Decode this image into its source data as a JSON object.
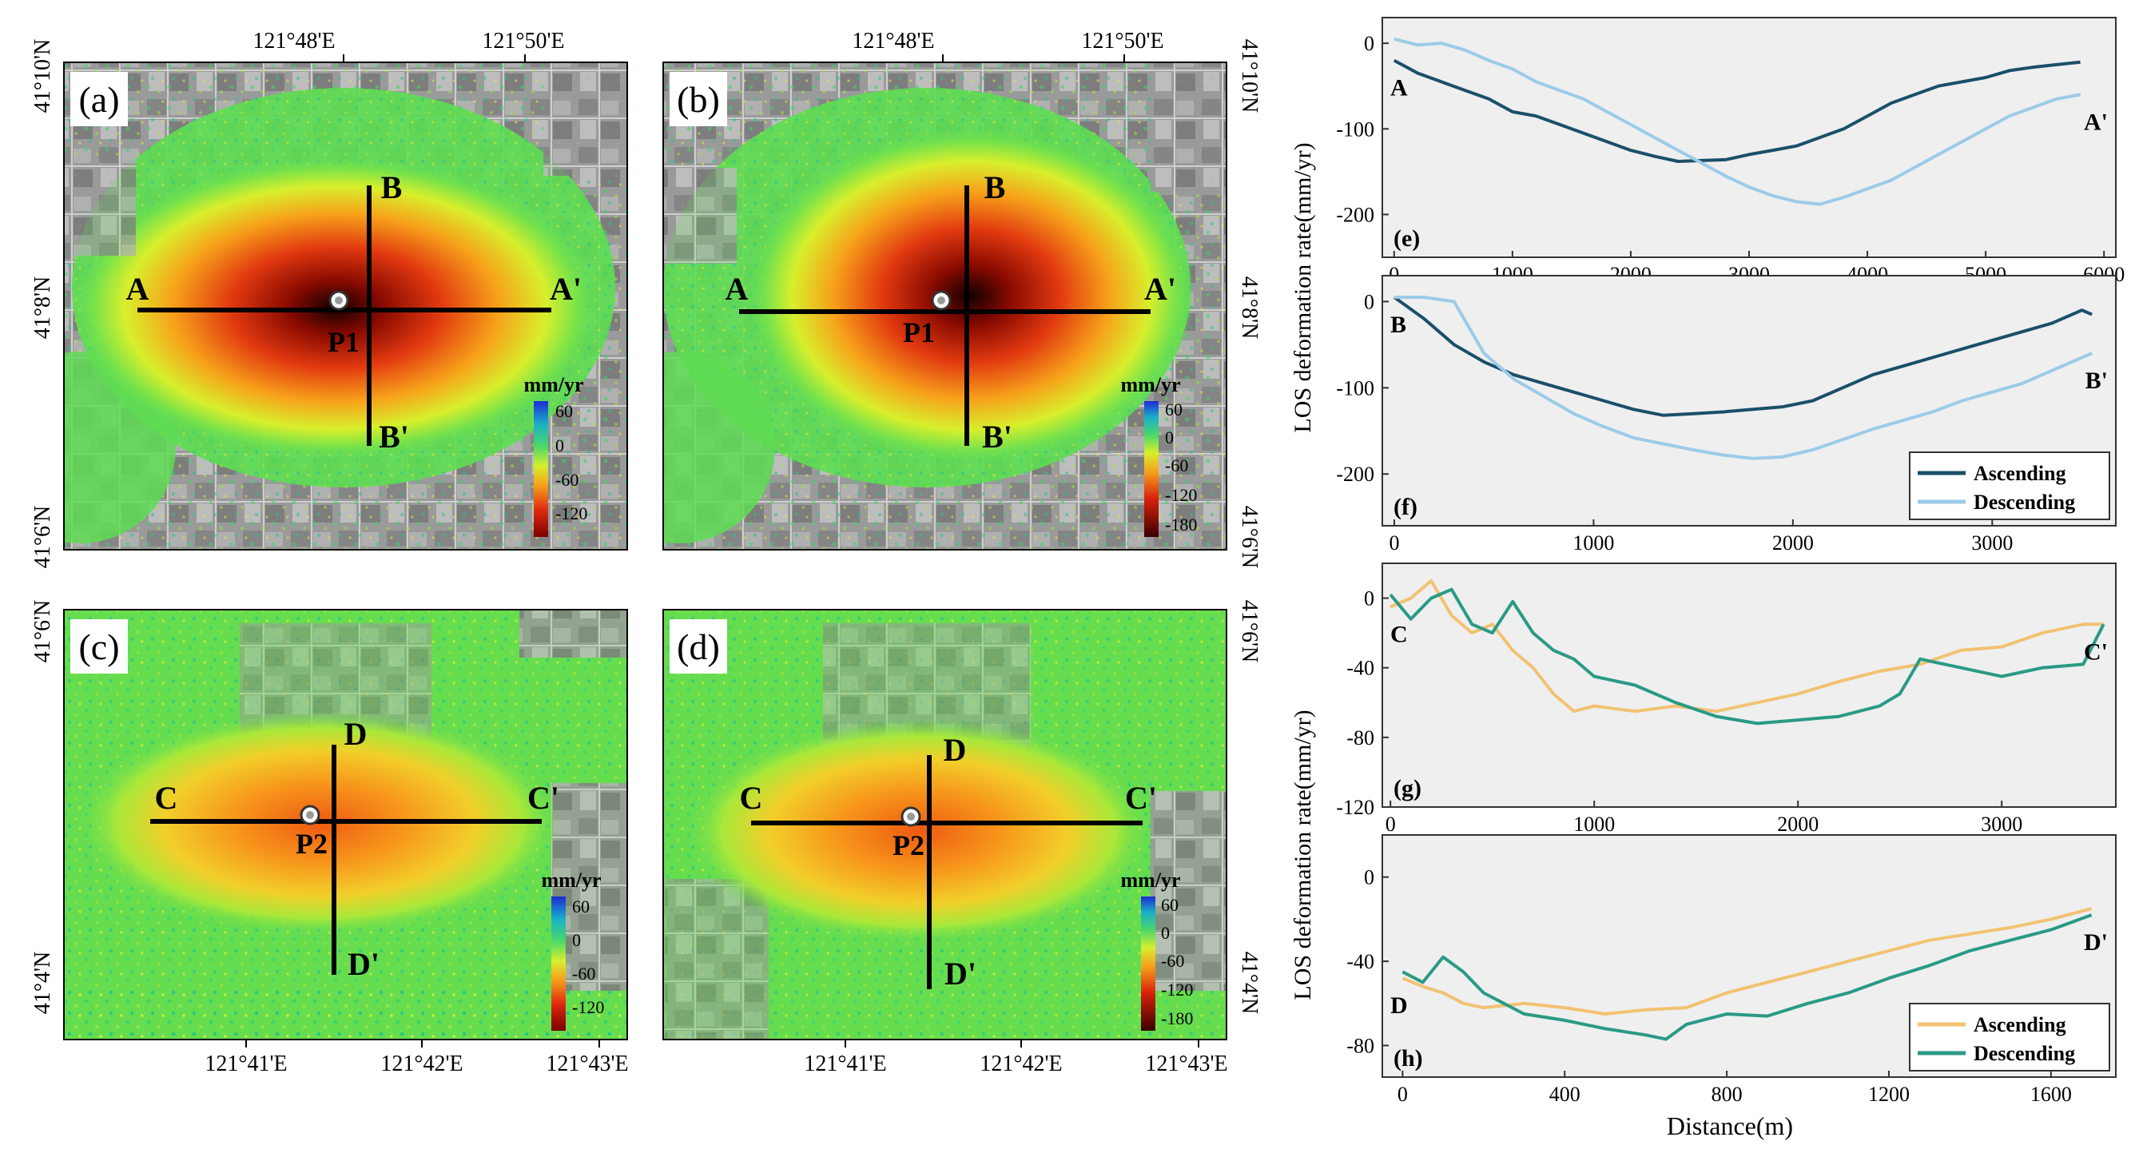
{
  "figure": {
    "maps": {
      "a": {
        "panel_label": "(a)",
        "lon_ticks": [
          "121°48'E",
          "121°50'E"
        ],
        "lat_ticks": [
          "41°10'N",
          "41°8'N",
          "41°6'N"
        ],
        "labels": {
          "start_h": "A",
          "end_h": "A'",
          "start_v": "B",
          "end_v": "B'",
          "point": "P1"
        },
        "colorbar": {
          "unit": "mm/yr",
          "ticks": [
            "60",
            "0",
            "-60",
            "-120"
          ]
        }
      },
      "b": {
        "panel_label": "(b)",
        "lon_ticks": [
          "121°48'E",
          "121°50'E"
        ],
        "lat_ticks": [
          "41°10'N",
          "41°8'N",
          "41°6'N"
        ],
        "labels": {
          "start_h": "A",
          "end_h": "A'",
          "start_v": "B",
          "end_v": "B'",
          "point": "P1"
        },
        "colorbar": {
          "unit": "mm/yr",
          "ticks": [
            "60",
            "0",
            "-60",
            "-120",
            "-180"
          ]
        }
      },
      "c": {
        "panel_label": "(c)",
        "lon_ticks": [
          "121°41'E",
          "121°42'E",
          "121°43'E"
        ],
        "lat_ticks": [
          "41°6'N",
          "41°4'N"
        ],
        "labels": {
          "start_h": "C",
          "end_h": "C'",
          "start_v": "D",
          "end_v": "D'",
          "point": "P2"
        },
        "colorbar": {
          "unit": "mm/yr",
          "ticks": [
            "60",
            "0",
            "-60",
            "-120"
          ]
        }
      },
      "d": {
        "panel_label": "(d)",
        "lon_ticks": [
          "121°41'E",
          "121°42'E",
          "121°43'E"
        ],
        "lat_ticks": [
          "41°6'N",
          "41°4'N"
        ],
        "labels": {
          "start_h": "C",
          "end_h": "C'",
          "start_v": "D",
          "end_v": "D'",
          "point": "P2"
        },
        "colorbar": {
          "unit": "mm/yr",
          "ticks": [
            "60",
            "0",
            "-60",
            "-120",
            "-180"
          ]
        }
      }
    },
    "colors": {
      "asc_blue": "#1b4f6a",
      "desc_blue": "#9ccbe8",
      "asc_orange": "#f2c272",
      "desc_teal": "#2a9a85",
      "plot_bg": "#efefef"
    },
    "shared": {
      "ylabel_top": "LOS deformation rate(mm/yr)",
      "ylabel_bottom": "LOS deformation rate(mm/yr)",
      "xlabel": "Distance(m)"
    }
  },
  "chart_data": [
    {
      "id": "e",
      "type": "line",
      "panel_label": "(e)",
      "start_label": "A",
      "end_label": "A'",
      "xlim": [
        -100,
        6100
      ],
      "ylim": [
        -250,
        30
      ],
      "xticks": [
        0,
        1000,
        2000,
        3000,
        4000,
        5000,
        6000
      ],
      "yticks": [
        0,
        -100,
        -200
      ],
      "legend": null,
      "series": [
        {
          "name": "Ascending",
          "color_key": "asc_blue",
          "x": [
            0,
            200,
            400,
            600,
            800,
            1000,
            1200,
            1400,
            1600,
            1800,
            2000,
            2200,
            2400,
            2600,
            2800,
            3000,
            3200,
            3400,
            3600,
            3800,
            4000,
            4200,
            4400,
            4600,
            4800,
            5000,
            5200,
            5400,
            5600,
            5800
          ],
          "y": [
            -20,
            -35,
            -45,
            -55,
            -65,
            -80,
            -85,
            -95,
            -105,
            -115,
            -125,
            -132,
            -138,
            -137,
            -136,
            -130,
            -125,
            -120,
            -110,
            -100,
            -85,
            -70,
            -60,
            -50,
            -45,
            -40,
            -32,
            -28,
            -25,
            -22
          ]
        },
        {
          "name": "Descending",
          "color_key": "desc_blue",
          "x": [
            0,
            200,
            400,
            600,
            800,
            1000,
            1200,
            1400,
            1600,
            1800,
            2000,
            2200,
            2400,
            2600,
            2800,
            3000,
            3200,
            3400,
            3600,
            3800,
            4000,
            4200,
            4400,
            4600,
            4800,
            5000,
            5200,
            5400,
            5600,
            5800
          ],
          "y": [
            5,
            -2,
            0,
            -8,
            -20,
            -30,
            -45,
            -55,
            -65,
            -80,
            -95,
            -110,
            -125,
            -140,
            -155,
            -168,
            -178,
            -185,
            -188,
            -180,
            -170,
            -160,
            -145,
            -130,
            -115,
            -100,
            -85,
            -75,
            -65,
            -60
          ]
        }
      ]
    },
    {
      "id": "f",
      "type": "line",
      "panel_label": "(f)",
      "start_label": "B",
      "end_label": "B'",
      "xlim": [
        -60,
        3620
      ],
      "ylim": [
        -260,
        30
      ],
      "xticks": [
        0,
        1000,
        2000,
        3000
      ],
      "yticks": [
        0,
        -100,
        -200
      ],
      "legend": {
        "position": "bottom-right",
        "entries": [
          "Ascending",
          "Descending"
        ]
      },
      "series": [
        {
          "name": "Ascending",
          "color_key": "asc_blue",
          "x": [
            0,
            150,
            300,
            450,
            600,
            750,
            900,
            1050,
            1200,
            1350,
            1500,
            1650,
            1800,
            1950,
            2100,
            2250,
            2400,
            2550,
            2700,
            2850,
            3000,
            3150,
            3300,
            3450,
            3500
          ],
          "y": [
            5,
            -20,
            -50,
            -70,
            -85,
            -95,
            -105,
            -115,
            -125,
            -132,
            -130,
            -128,
            -125,
            -122,
            -115,
            -100,
            -85,
            -75,
            -65,
            -55,
            -45,
            -35,
            -25,
            -10,
            -15
          ]
        },
        {
          "name": "Descending",
          "color_key": "desc_blue",
          "x": [
            0,
            150,
            300,
            450,
            600,
            750,
            900,
            1050,
            1200,
            1350,
            1500,
            1650,
            1800,
            1950,
            2100,
            2250,
            2400,
            2550,
            2700,
            2850,
            3000,
            3150,
            3300,
            3450,
            3500
          ],
          "y": [
            5,
            5,
            0,
            -60,
            -90,
            -110,
            -130,
            -145,
            -158,
            -165,
            -172,
            -178,
            -182,
            -180,
            -172,
            -160,
            -148,
            -138,
            -128,
            -115,
            -105,
            -95,
            -80,
            -65,
            -60
          ]
        }
      ]
    },
    {
      "id": "g",
      "type": "line",
      "panel_label": "(g)",
      "start_label": "C",
      "end_label": "C'",
      "xlim": [
        -40,
        3560
      ],
      "ylim": [
        -120,
        20
      ],
      "xticks": [
        0,
        1000,
        2000,
        3000
      ],
      "yticks": [
        0,
        -40,
        -80,
        -120
      ],
      "legend": null,
      "series": [
        {
          "name": "Ascending",
          "color_key": "asc_orange",
          "x": [
            0,
            100,
            200,
            300,
            400,
            500,
            600,
            700,
            800,
            900,
            1000,
            1200,
            1400,
            1600,
            1800,
            2000,
            2200,
            2400,
            2600,
            2800,
            3000,
            3200,
            3400,
            3500
          ],
          "y": [
            -5,
            0,
            10,
            -10,
            -20,
            -15,
            -30,
            -40,
            -55,
            -65,
            -62,
            -65,
            -62,
            -65,
            -60,
            -55,
            -48,
            -42,
            -38,
            -30,
            -28,
            -20,
            -15,
            -15
          ]
        },
        {
          "name": "Descending",
          "color_key": "desc_teal",
          "x": [
            0,
            100,
            200,
            300,
            400,
            500,
            600,
            700,
            800,
            900,
            1000,
            1200,
            1400,
            1600,
            1800,
            2000,
            2200,
            2400,
            2500,
            2600,
            2800,
            3000,
            3200,
            3400,
            3500
          ],
          "y": [
            2,
            -12,
            0,
            5,
            -15,
            -20,
            -2,
            -20,
            -30,
            -35,
            -45,
            -50,
            -60,
            -68,
            -72,
            -70,
            -68,
            -62,
            -55,
            -35,
            -40,
            -45,
            -40,
            -38,
            -15
          ]
        }
      ]
    },
    {
      "id": "h",
      "type": "line",
      "panel_label": "(h)",
      "start_label": "D",
      "end_label": "D'",
      "xlim": [
        -50,
        1760
      ],
      "ylim": [
        -95,
        20
      ],
      "xticks": [
        0,
        400,
        800,
        1200,
        1600
      ],
      "yticks": [
        0,
        -40,
        -80
      ],
      "legend": {
        "position": "bottom-right",
        "entries": [
          "Ascending",
          "Descending"
        ]
      },
      "series": [
        {
          "name": "Ascending",
          "color_key": "asc_orange",
          "x": [
            0,
            50,
            100,
            150,
            200,
            300,
            400,
            500,
            600,
            700,
            800,
            900,
            1000,
            1100,
            1200,
            1300,
            1400,
            1500,
            1600,
            1700
          ],
          "y": [
            -48,
            -52,
            -55,
            -60,
            -62,
            -60,
            -62,
            -65,
            -63,
            -62,
            -55,
            -50,
            -45,
            -40,
            -35,
            -30,
            -27,
            -24,
            -20,
            -15
          ]
        },
        {
          "name": "Descending",
          "color_key": "desc_teal",
          "x": [
            0,
            50,
            100,
            150,
            200,
            250,
            300,
            400,
            500,
            600,
            650,
            700,
            800,
            900,
            1000,
            1100,
            1200,
            1300,
            1400,
            1500,
            1600,
            1700
          ],
          "y": [
            -45,
            -50,
            -38,
            -45,
            -55,
            -60,
            -65,
            -68,
            -72,
            -75,
            -77,
            -70,
            -65,
            -66,
            -60,
            -55,
            -48,
            -42,
            -35,
            -30,
            -25,
            -18
          ]
        }
      ]
    }
  ]
}
